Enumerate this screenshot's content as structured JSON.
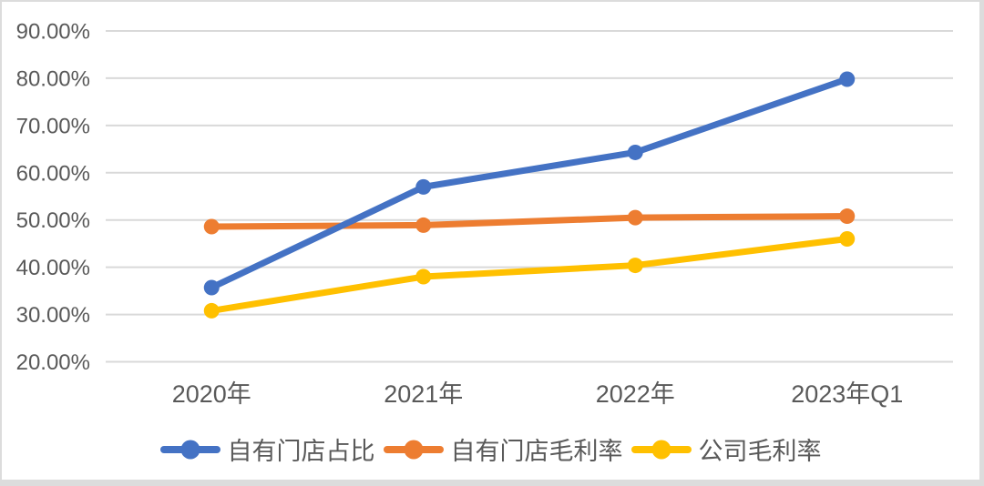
{
  "chart_data": {
    "type": "line",
    "title": "",
    "categories": [
      "2020年",
      "2021年",
      "2022年",
      "2023年Q1"
    ],
    "series": [
      {
        "id": "own-store-share",
        "name": "自有门店占比",
        "color": "#4472C4",
        "values": [
          35.7,
          57.0,
          64.3,
          79.8
        ]
      },
      {
        "id": "own-store-gross-margin",
        "name": "自有门店毛利率",
        "color": "#ED7D31",
        "values": [
          48.6,
          48.9,
          50.5,
          50.8
        ]
      },
      {
        "id": "company-gross-margin",
        "name": "公司毛利率",
        "color": "#FFC000",
        "values": [
          30.8,
          38.0,
          40.4,
          46.0
        ]
      }
    ],
    "y_axis": {
      "min": 20,
      "max": 90,
      "step": 10,
      "tick_labels_top_to_bottom": [
        "90.00%",
        "80.00%",
        "70.00%",
        "60.00%",
        "50.00%",
        "40.00%",
        "30.00%",
        "20.00%"
      ]
    },
    "x_axis": {
      "labels": [
        "2020年",
        "2021年",
        "2022年",
        "2023年Q1"
      ]
    },
    "grid": true,
    "legend_position": "bottom",
    "draw_order_series_indexes": [
      1,
      2,
      0
    ],
    "colors": {
      "gridline": "#d9d9d9",
      "axis_text": "#595959",
      "background": "#ffffff",
      "frame_border": "#dcdcdc"
    }
  }
}
